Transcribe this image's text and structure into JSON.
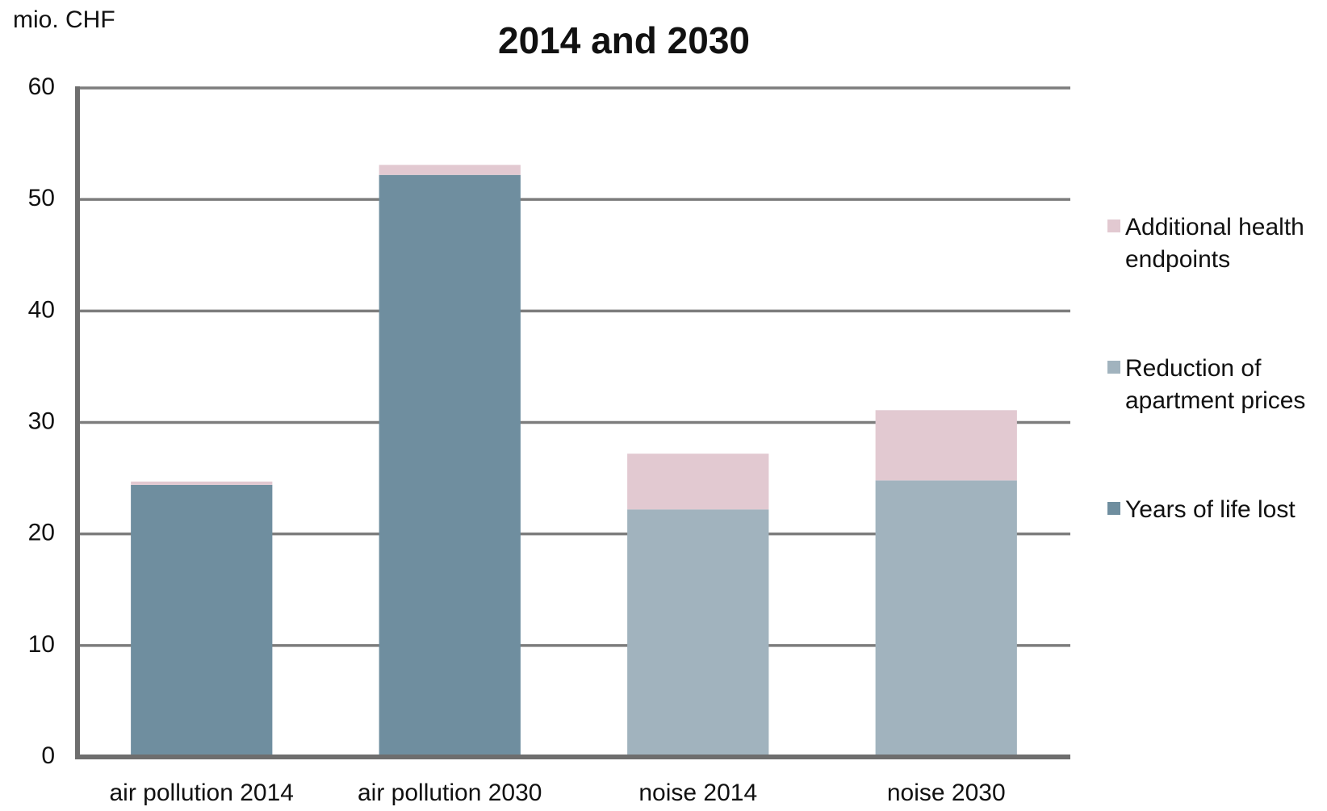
{
  "chart_data": {
    "type": "stacked_bar",
    "title": "2014 and 2030",
    "y_label": "mio. CHF",
    "categories": [
      "air pollution 2014",
      "air pollution 2030",
      "noise 2014",
      "noise 2030"
    ],
    "series": [
      {
        "name": "Years of life lost",
        "color": "#6f8e9f",
        "values": [
          24.4,
          52.2,
          0,
          0
        ]
      },
      {
        "name": "Reduction of apartment prices",
        "color": "#a1b3be",
        "values": [
          0,
          0,
          22.2,
          24.8
        ]
      },
      {
        "name": "Additional health endpoints",
        "color": "#e2c9d1",
        "values": [
          0.3,
          0.9,
          5.0,
          6.3
        ]
      }
    ],
    "ylim": [
      0,
      60
    ],
    "yticks": [
      0,
      10,
      20,
      30,
      40,
      50,
      60
    ],
    "grid": true,
    "legend": "right"
  }
}
